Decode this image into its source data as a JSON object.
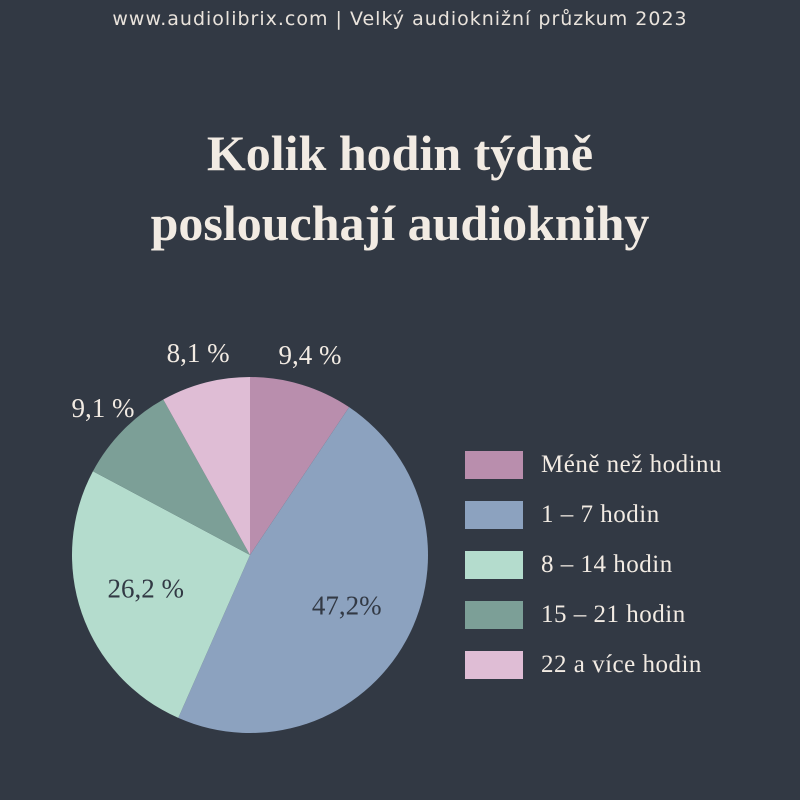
{
  "header": {
    "text": "www.audiolibrix.com | Velký audioknižní průzkum 2023"
  },
  "title": {
    "line1": "Kolik hodin týdně",
    "line2": "poslouchají audioknihy"
  },
  "colors": {
    "background": "#323944",
    "text": "#f2ebe3"
  },
  "chart_data": {
    "type": "pie",
    "title": "Kolik hodin týdně poslouchají audioknihy",
    "legend_position": "right",
    "start_angle": "top",
    "direction": "clockwise",
    "slices": [
      {
        "label": "Méně než hodinu",
        "value": 9.4,
        "display": "9,4 %",
        "color": "#b98ead",
        "label_placement": "outside"
      },
      {
        "label": "1 – 7 hodin",
        "value": 47.2,
        "display": "47,2%",
        "color": "#8ca2bf",
        "label_placement": "inside"
      },
      {
        "label": "8 – 14 hodin",
        "value": 26.2,
        "display": "26,2 %",
        "color": "#b4dccd",
        "label_placement": "inside"
      },
      {
        "label": "15 – 21 hodin",
        "value": 9.1,
        "display": "9,1 %",
        "color": "#7c9f97",
        "label_placement": "outside"
      },
      {
        "label": "22 a více hodin",
        "value": 8.1,
        "display": "8,1 %",
        "color": "#dfbdd5",
        "label_placement": "outside"
      }
    ]
  }
}
